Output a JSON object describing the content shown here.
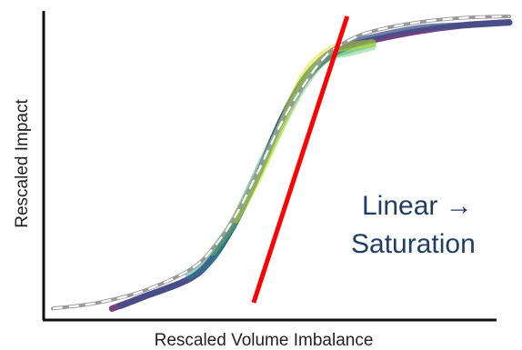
{
  "chart_data": {
    "type": "line",
    "title": "",
    "xlabel": "Rescaled Volume Imbalance",
    "ylabel": "Rescaled Impact",
    "xlim": [
      0,
      1
    ],
    "ylim": [
      0,
      1
    ],
    "grid": false,
    "annotation": {
      "line1": "Linear →",
      "line2": "Saturation"
    },
    "linear_fit": {
      "x": [
        0.44,
        0.645
      ],
      "y": [
        0.04,
        1.0
      ],
      "color": "#ff0000"
    },
    "reference_curve": {
      "x": [
        0.0,
        0.1,
        0.2,
        0.3,
        0.35,
        0.4,
        0.45,
        0.5,
        0.55,
        0.6,
        0.65,
        0.7,
        0.8,
        0.9,
        1.0
      ],
      "y": [
        0.02,
        0.04,
        0.08,
        0.15,
        0.22,
        0.33,
        0.48,
        0.64,
        0.77,
        0.87,
        0.92,
        0.95,
        0.98,
        0.995,
        1.0
      ],
      "color": "#999999"
    },
    "series": [
      {
        "color": "#440154",
        "x": [
          0.13,
          0.2,
          0.3,
          0.35,
          0.4,
          0.45,
          0.5,
          0.55,
          0.6,
          0.65,
          0.7,
          0.8,
          0.9,
          1.0
        ],
        "y": [
          0.02,
          0.06,
          0.12,
          0.19,
          0.31,
          0.47,
          0.65,
          0.78,
          0.86,
          0.9,
          0.92,
          0.95,
          0.97,
          0.98
        ]
      },
      {
        "color": "#3b528b",
        "x": [
          0.15,
          0.2,
          0.3,
          0.35,
          0.4,
          0.45,
          0.5,
          0.55,
          0.6,
          0.65,
          0.7,
          0.8,
          0.9,
          1.0
        ],
        "y": [
          0.03,
          0.06,
          0.12,
          0.19,
          0.31,
          0.47,
          0.65,
          0.79,
          0.87,
          0.91,
          0.93,
          0.96,
          0.97,
          0.98
        ]
      },
      {
        "color": "#21918c",
        "x": [
          0.3,
          0.35,
          0.4,
          0.45,
          0.5,
          0.55,
          0.6,
          0.65,
          0.7
        ],
        "y": [
          0.13,
          0.19,
          0.32,
          0.48,
          0.64,
          0.78,
          0.86,
          0.89,
          0.91
        ]
      },
      {
        "color": "#5ec962",
        "x": [
          0.35,
          0.4,
          0.45,
          0.5,
          0.55,
          0.6,
          0.65,
          0.7
        ],
        "y": [
          0.21,
          0.32,
          0.47,
          0.63,
          0.77,
          0.86,
          0.88,
          0.9
        ]
      },
      {
        "color": "#d8e219",
        "x": [
          0.4,
          0.45,
          0.5,
          0.55,
          0.6,
          0.65,
          0.7
        ],
        "y": [
          0.32,
          0.46,
          0.63,
          0.8,
          0.88,
          0.9,
          0.91
        ]
      }
    ]
  },
  "colors": {
    "axis": "#111111",
    "annotation": "#1f3d66"
  }
}
